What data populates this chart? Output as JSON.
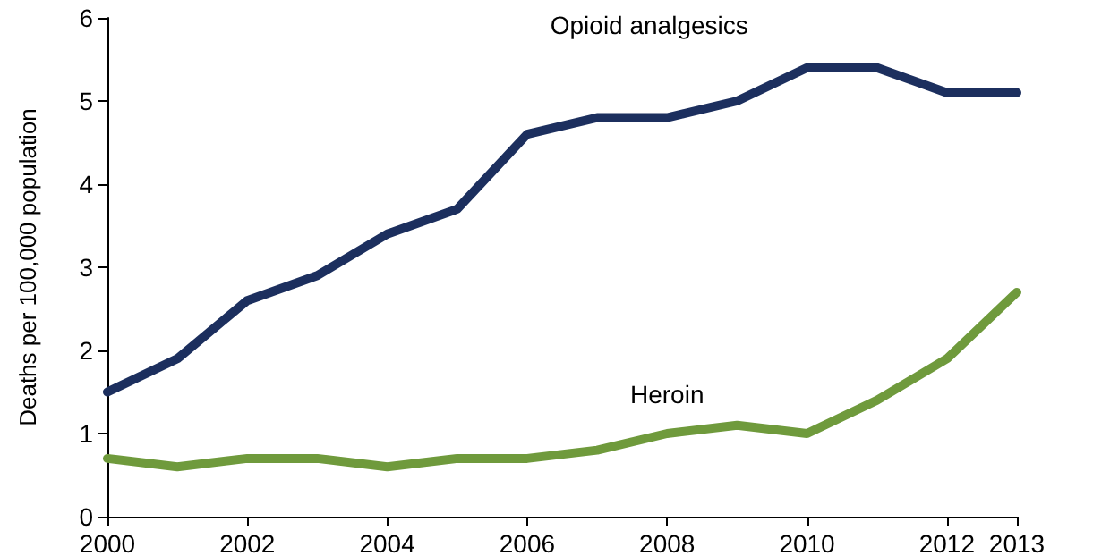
{
  "chart_data": {
    "type": "line",
    "ylabel": "Deaths per 100,000 population",
    "x": [
      2000,
      2001,
      2002,
      2003,
      2004,
      2005,
      2006,
      2007,
      2008,
      2009,
      2010,
      2011,
      2012,
      2013
    ],
    "series": [
      {
        "name": "Opioid analgesics",
        "color": "#1c2f5e",
        "values": [
          1.5,
          1.9,
          2.6,
          2.9,
          3.4,
          3.7,
          4.6,
          4.8,
          4.8,
          5.0,
          5.4,
          5.4,
          5.1,
          5.1
        ]
      },
      {
        "name": "Heroin",
        "color": "#6f9a3c",
        "values": [
          0.7,
          0.6,
          0.7,
          0.7,
          0.6,
          0.7,
          0.7,
          0.8,
          1.0,
          1.1,
          1.0,
          1.4,
          1.9,
          2.7
        ]
      }
    ],
    "xlim": [
      2000,
      2013
    ],
    "xticks": [
      2000,
      2002,
      2004,
      2006,
      2008,
      2010,
      2012,
      2013
    ],
    "ylim": [
      0,
      6
    ],
    "yticks": [
      0,
      1,
      2,
      3,
      4,
      5,
      6
    ],
    "grid": false,
    "legend": false,
    "marker": "none",
    "line_style": "solid"
  }
}
